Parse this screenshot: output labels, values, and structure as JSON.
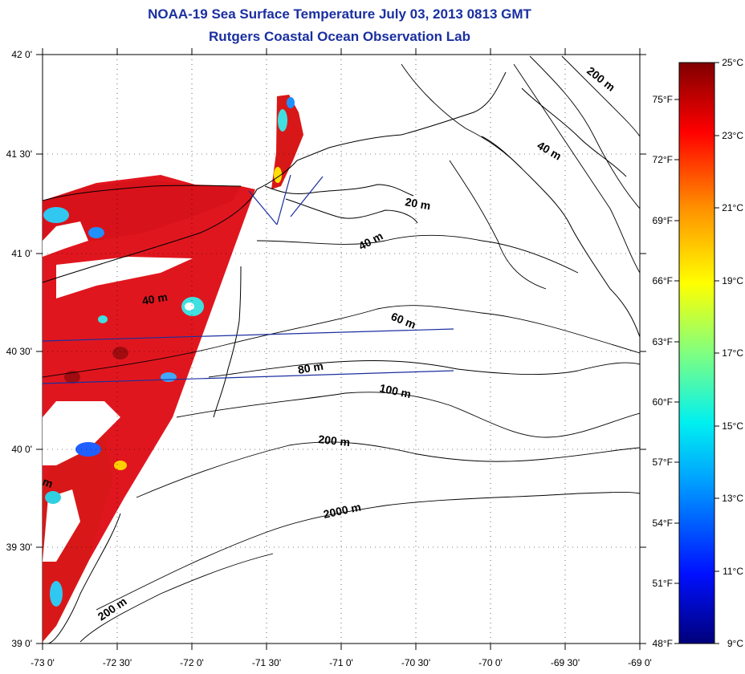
{
  "title": "NOAA-19 Sea Surface Temperature July 03, 2013 0813 GMT",
  "subtitle": "Rutgers Coastal Ocean Observation Lab",
  "map": {
    "lon_range": [
      -73,
      -69
    ],
    "lat_range": [
      39,
      42
    ],
    "lon_ticks": [
      "-73 0'",
      "-72 30'",
      "-72 0'",
      "-71 30'",
      "-71 0'",
      "-70 30'",
      "-70 0'",
      "-69 30'",
      "-69 0'"
    ],
    "lat_ticks": [
      "39 0'",
      "39 30'",
      "40 0'",
      "40 30'",
      "41 0'",
      "41 30'",
      "42 0'"
    ],
    "grid": "dotted",
    "contour_labels": [
      "200 m",
      "40 m",
      "20 m",
      "40 m",
      "40 m",
      "60 m",
      "80 m",
      "100 m",
      "200 m",
      "2000 m",
      "200 m",
      "m"
    ]
  },
  "colorbar": {
    "celsius_labels": [
      "25°C",
      "23°C",
      "21°C",
      "19°C",
      "17°C",
      "15°C",
      "13°C",
      "11°C",
      "9°C"
    ],
    "fahrenheit_labels": [
      "75°F",
      "72°F",
      "69°F",
      "66°F",
      "63°F",
      "60°F",
      "57°F",
      "54°F",
      "51°F",
      "48°F"
    ],
    "range_c": [
      9,
      25
    ],
    "colors": [
      "#00008b",
      "#0000ff",
      "#00aaff",
      "#00ffff",
      "#80ff80",
      "#ffff00",
      "#ffaa00",
      "#ff0000",
      "#800000"
    ]
  }
}
